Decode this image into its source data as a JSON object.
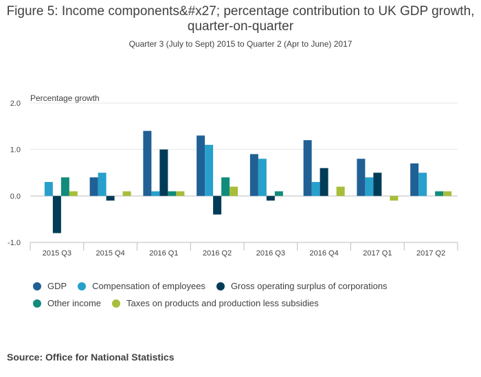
{
  "chart_data": {
    "type": "bar",
    "title": "Figure 5: Income components&#x27; percentage contribution to UK GDP growth, quarter-on-quarter",
    "subtitle": "Quarter 3 (July to Sept) 2015 to Quarter 2 (Apr to June) 2017",
    "ylabel": "Percentage growth",
    "xlabel": "",
    "ylim": [
      -1.0,
      2.0
    ],
    "yticks": [
      "-1.0",
      "0.0",
      "1.0",
      "2.0"
    ],
    "yticks_values": [
      -1.0,
      0.0,
      1.0,
      2.0
    ],
    "grid": true,
    "legend_position": "bottom",
    "categories": [
      "2015 Q3",
      "2015 Q4",
      "2016 Q1",
      "2016 Q2",
      "2016 Q3",
      "2016 Q4",
      "2017 Q1",
      "2017 Q2"
    ],
    "series": [
      {
        "name": "GDP",
        "color": "#206095",
        "values": [
          null,
          0.4,
          1.4,
          1.3,
          0.9,
          1.2,
          0.8,
          0.7
        ]
      },
      {
        "name": "Compensation of employees",
        "color": "#27a0cc",
        "values": [
          0.3,
          0.5,
          0.1,
          1.1,
          0.8,
          0.3,
          0.4,
          0.5
        ]
      },
      {
        "name": "Gross operating surplus of corporations",
        "color": "#003c57",
        "values": [
          -0.8,
          -0.1,
          1.0,
          -0.4,
          -0.1,
          0.6,
          0.5,
          null
        ]
      },
      {
        "name": "Other income",
        "color": "#118c7b",
        "values": [
          0.4,
          null,
          0.1,
          0.4,
          0.1,
          null,
          null,
          0.1
        ]
      },
      {
        "name": "Taxes on products and production less subsidies",
        "color": "#a8bd3a",
        "values": [
          0.1,
          0.1,
          0.1,
          0.2,
          null,
          0.2,
          -0.1,
          0.1
        ]
      }
    ]
  },
  "source": "Source: Office for National Statistics"
}
